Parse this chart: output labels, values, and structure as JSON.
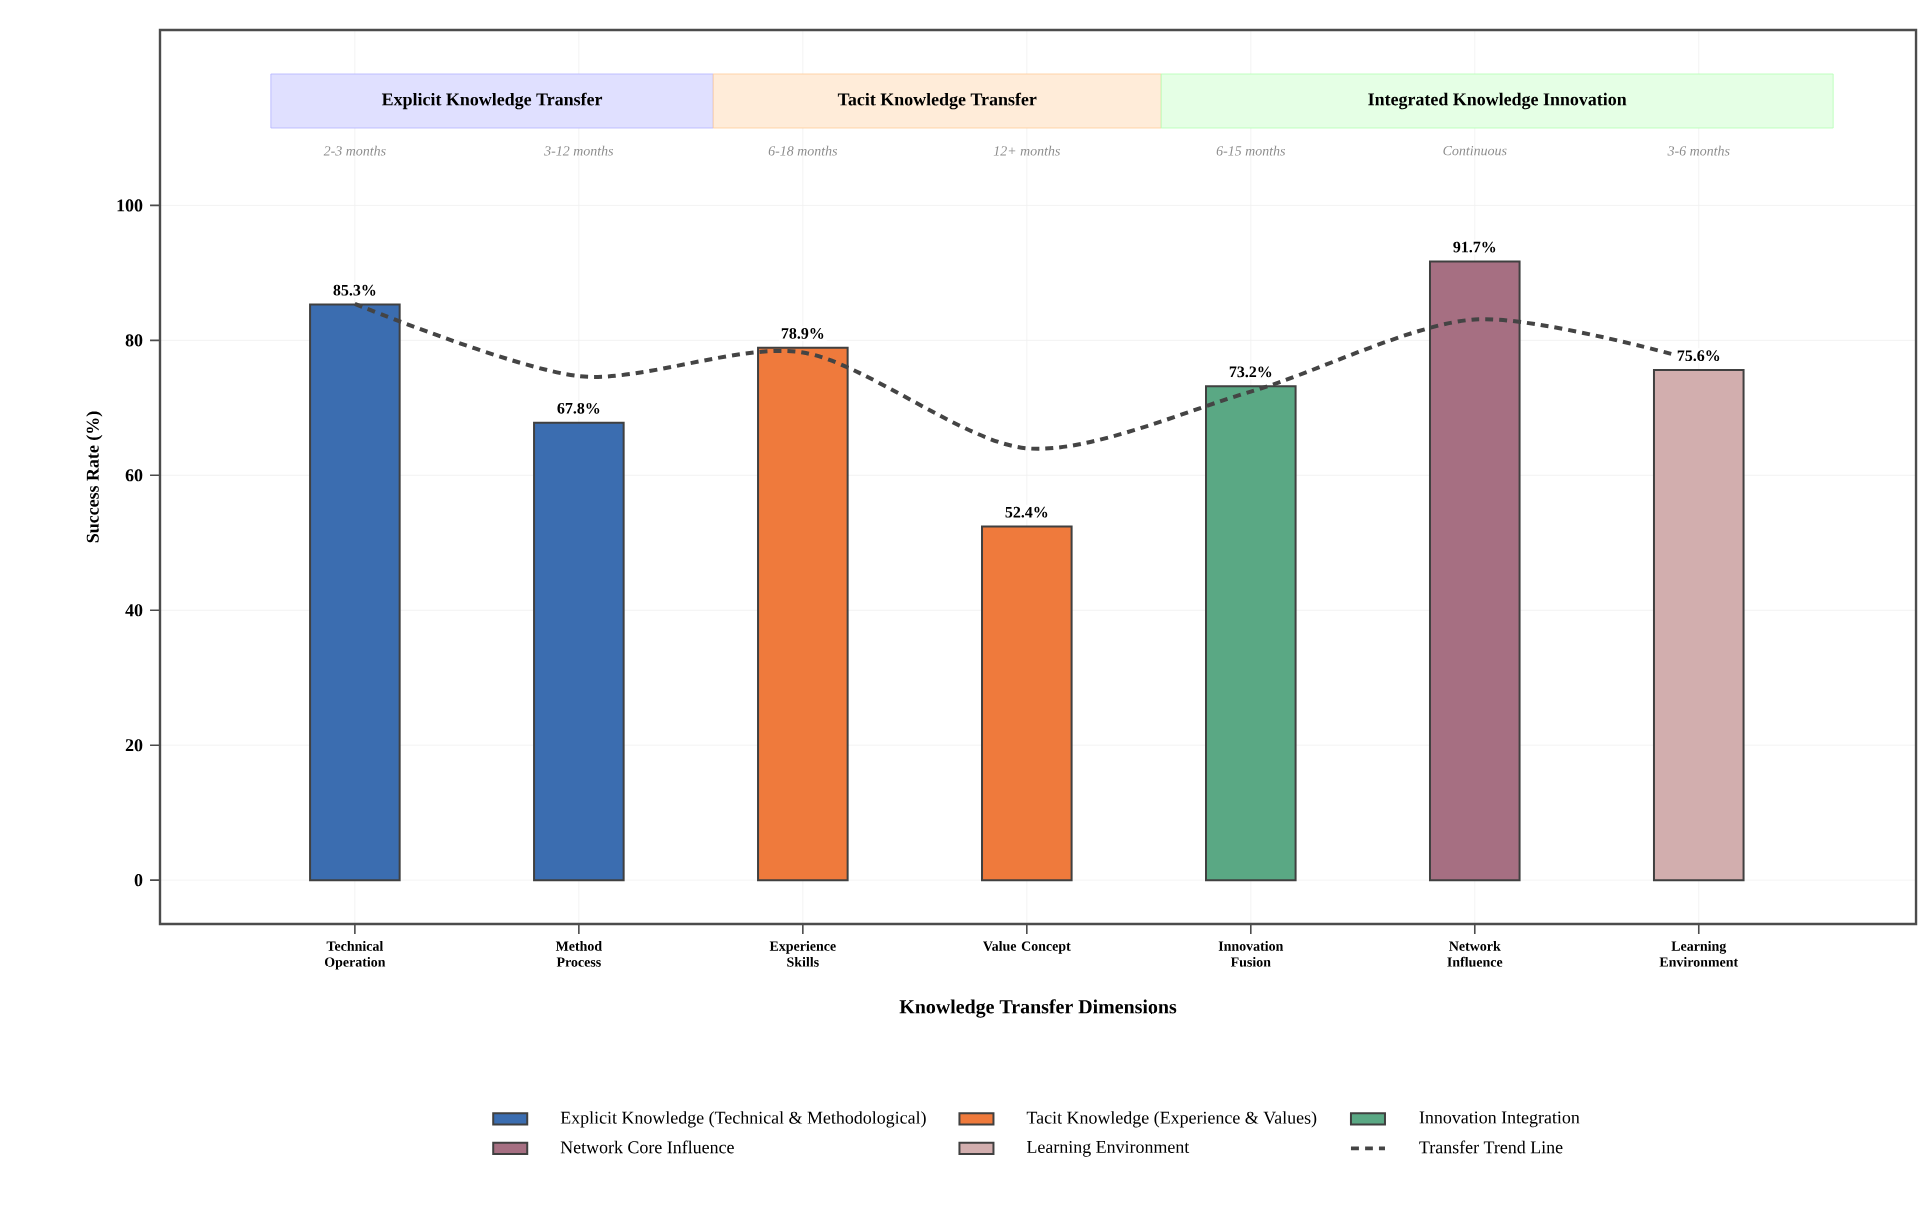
{
  "chart_data": {
    "type": "bar",
    "xlabel": "Knowledge Transfer Dimensions",
    "ylabel": "Success Rate (%)",
    "categories": [
      "Technical Operation",
      "Method Process",
      "Experience Skills",
      "Value Concept",
      "Innovation Fusion",
      "Network Influence",
      "Learning Environment"
    ],
    "series": [
      {
        "name": "Explicit Knowledge (Technical & Methodological)",
        "color": "#3b6db0",
        "values": [
          85.3,
          67.8,
          null,
          null,
          null,
          null,
          null
        ],
        "value_labels": [
          "85.3%",
          "67.8%",
          null,
          null,
          null,
          null,
          null
        ]
      },
      {
        "name": "Tacit Knowledge (Experience & Values)",
        "color": "#ef7a3c",
        "values": [
          null,
          null,
          78.9,
          52.4,
          null,
          null,
          null
        ],
        "value_labels": [
          null,
          null,
          "78.9%",
          "52.4%",
          null,
          null,
          null
        ]
      },
      {
        "name": "Innovation Integration",
        "color": "#5aa884",
        "values": [
          null,
          null,
          null,
          null,
          73.2,
          null,
          null
        ],
        "value_labels": [
          null,
          null,
          null,
          null,
          "73.2%",
          null,
          null
        ]
      },
      {
        "name": "Network Core Influence",
        "color": "#a66f82",
        "values": [
          null,
          null,
          null,
          null,
          null,
          91.7,
          null
        ],
        "value_labels": [
          null,
          null,
          null,
          null,
          null,
          "91.7%",
          null
        ]
      },
      {
        "name": "Learning Environment",
        "color": "#d2aeae",
        "values": [
          null,
          null,
          null,
          null,
          null,
          null,
          75.6
        ],
        "value_labels": [
          null,
          null,
          null,
          null,
          null,
          null,
          "75.6%"
        ]
      },
      {
        "name": "Transfer Trend Line",
        "type": "line",
        "color": "#444444",
        "line_style": "dashed",
        "marker": "none",
        "values": [
          85.4,
          74.7,
          78.2,
          64.0,
          72.4,
          83.1,
          76.9
        ]
      }
    ],
    "ylim": [
      -6.5,
      126
    ],
    "yticks": [
      0,
      20,
      40,
      60,
      80,
      100
    ],
    "grid": true,
    "legend": "bottom",
    "annotations": [
      "Explicit Knowledge Transfer",
      "Tacit Knowledge Transfer",
      "Integrated Knowledge Innovation",
      "2-3 months",
      "3-12 months",
      "6-18 months",
      "12+ months",
      "6-15 months",
      "Continuous",
      "3-6 months"
    ]
  }
}
